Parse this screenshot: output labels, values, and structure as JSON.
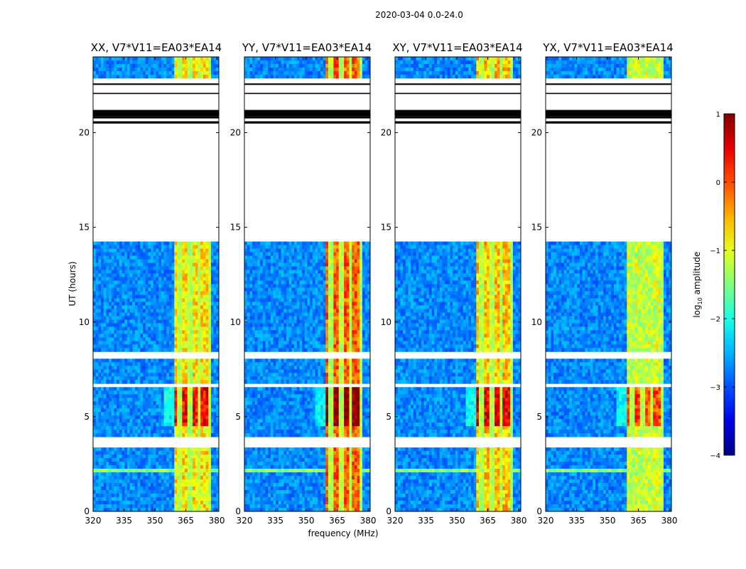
{
  "chart_data": {
    "type": "heatmap",
    "suptitle": "2020-03-04 0.0-24.0",
    "xlabel": "frequency (MHz)",
    "ylabel": "UT (hours)",
    "xlim": [
      320,
      381
    ],
    "ylim": [
      0,
      24
    ],
    "xticks": [
      320,
      335,
      350,
      365,
      380
    ],
    "xtick_labels": [
      "320",
      "335",
      "350",
      "365",
      "380"
    ],
    "yticks": [
      0,
      5,
      10,
      15,
      20
    ],
    "ytick_labels": [
      "0",
      "5",
      "10",
      "15",
      "20"
    ],
    "colormap": "jet",
    "colorbar": {
      "label": "log10 amplitude",
      "label_base": "log",
      "label_sub": "10",
      "label_rest": " amplitude",
      "range": [
        -4,
        1
      ],
      "ticks": [
        -4,
        -3,
        -2,
        -1,
        0,
        1
      ],
      "tick_labels": [
        "−4",
        "−3",
        "−2",
        "−1",
        "0",
        "1"
      ]
    },
    "panels": [
      {
        "title": "XX, V7*V11=EA03*EA14",
        "band_strength": 0.65
      },
      {
        "title": "YY, V7*V11=EA03*EA14",
        "band_strength": 0.78
      },
      {
        "title": "XY, V7*V11=EA03*EA14",
        "band_strength": 0.68
      },
      {
        "title": "YX, V7*V11=EA03*EA14",
        "band_strength": 0.58
      }
    ],
    "features": {
      "rfi_band_mhz": [
        359,
        377
      ],
      "rfi_notches_mhz": [
        362,
        367,
        371,
        376
      ],
      "flagged_time_ranges_hours": [
        [
          14.3,
          22.9
        ]
      ],
      "enhanced_rfi_hours": [
        4.5,
        6.5
      ],
      "gap_hours": [
        [
          3.3,
          3.9
        ],
        [
          6.55,
          6.75
        ],
        [
          8.0,
          8.4
        ],
        [
          20.7,
          21.4
        ],
        [
          22.0,
          22.8
        ]
      ]
    }
  }
}
